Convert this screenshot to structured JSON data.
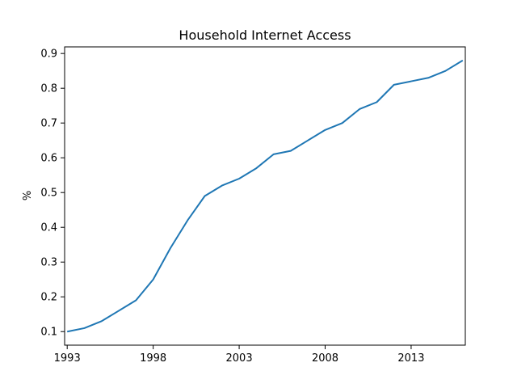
{
  "chart_data": {
    "type": "line",
    "title": "Household Internet Access",
    "xlabel": "",
    "ylabel": "%",
    "x": [
      1993,
      1994,
      1995,
      1996,
      1997,
      1998,
      1999,
      2000,
      2001,
      2002,
      2003,
      2004,
      2005,
      2006,
      2007,
      2008,
      2009,
      2010,
      2011,
      2012,
      2013,
      2014,
      2015,
      2016
    ],
    "series": [
      {
        "color": "#1f77b4",
        "values": [
          0.1,
          0.11,
          0.13,
          0.16,
          0.19,
          0.25,
          0.34,
          0.42,
          0.49,
          0.52,
          0.54,
          0.57,
          0.61,
          0.62,
          0.65,
          0.68,
          0.7,
          0.74,
          0.76,
          0.81,
          0.82,
          0.83,
          0.85,
          0.88
        ]
      }
    ],
    "xlim": [
      1992.85,
      2016.15
    ],
    "ylim": [
      0.061,
      0.919
    ],
    "xticks": [
      1993,
      1998,
      2003,
      2008,
      2013
    ],
    "yticks": [
      0.1,
      0.2,
      0.3,
      0.4,
      0.5,
      0.6,
      0.7,
      0.8,
      0.9
    ],
    "ytick_labels": [
      "0.1",
      "0.2",
      "0.3",
      "0.4",
      "0.5",
      "0.6",
      "0.7",
      "0.8",
      "0.9"
    ],
    "grid": false,
    "legend": "none"
  }
}
